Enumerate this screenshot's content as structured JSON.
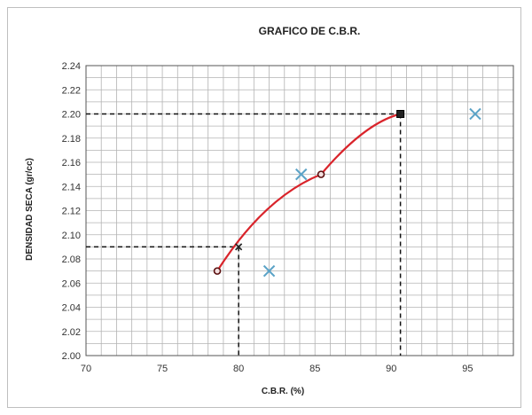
{
  "chart_data": {
    "type": "scatter",
    "title": "GRAFICO DE C.B.R.",
    "xlabel": "C.B.R.  (%)",
    "ylabel": "DENSIDAD SECA  (gr/cc)",
    "xlim": [
      70,
      98
    ],
    "ylim": [
      2.0,
      2.24
    ],
    "x_ticks": [
      "70",
      "75",
      "80",
      "85",
      "90",
      "95"
    ],
    "y_ticks": [
      "2.00",
      "2.02",
      "2.04",
      "2.06",
      "2.08",
      "2.10",
      "2.12",
      "2.14",
      "2.16",
      "2.18",
      "2.20",
      "2.22",
      "2.24"
    ],
    "grid": true,
    "series": [
      {
        "style": "line-with-markers",
        "color": "#d9242b",
        "marker_color": "#5a1010",
        "points": [
          [
            78.6,
            2.07
          ],
          [
            85.4,
            2.15
          ],
          [
            90.6,
            2.2
          ]
        ]
      },
      {
        "style": "x-markers",
        "color": "#5ba3c7",
        "points": [
          [
            82.0,
            2.07
          ],
          [
            84.1,
            2.15
          ],
          [
            95.5,
            2.2
          ]
        ]
      }
    ],
    "reference_lines": [
      {
        "x": 80.0,
        "y": 2.09
      },
      {
        "x": 90.6,
        "y": 2.2
      }
    ],
    "reference_markers": [
      {
        "x": 80.0,
        "y": 2.09,
        "shape": "x"
      },
      {
        "x": 90.6,
        "y": 2.2,
        "shape": "square"
      }
    ]
  }
}
